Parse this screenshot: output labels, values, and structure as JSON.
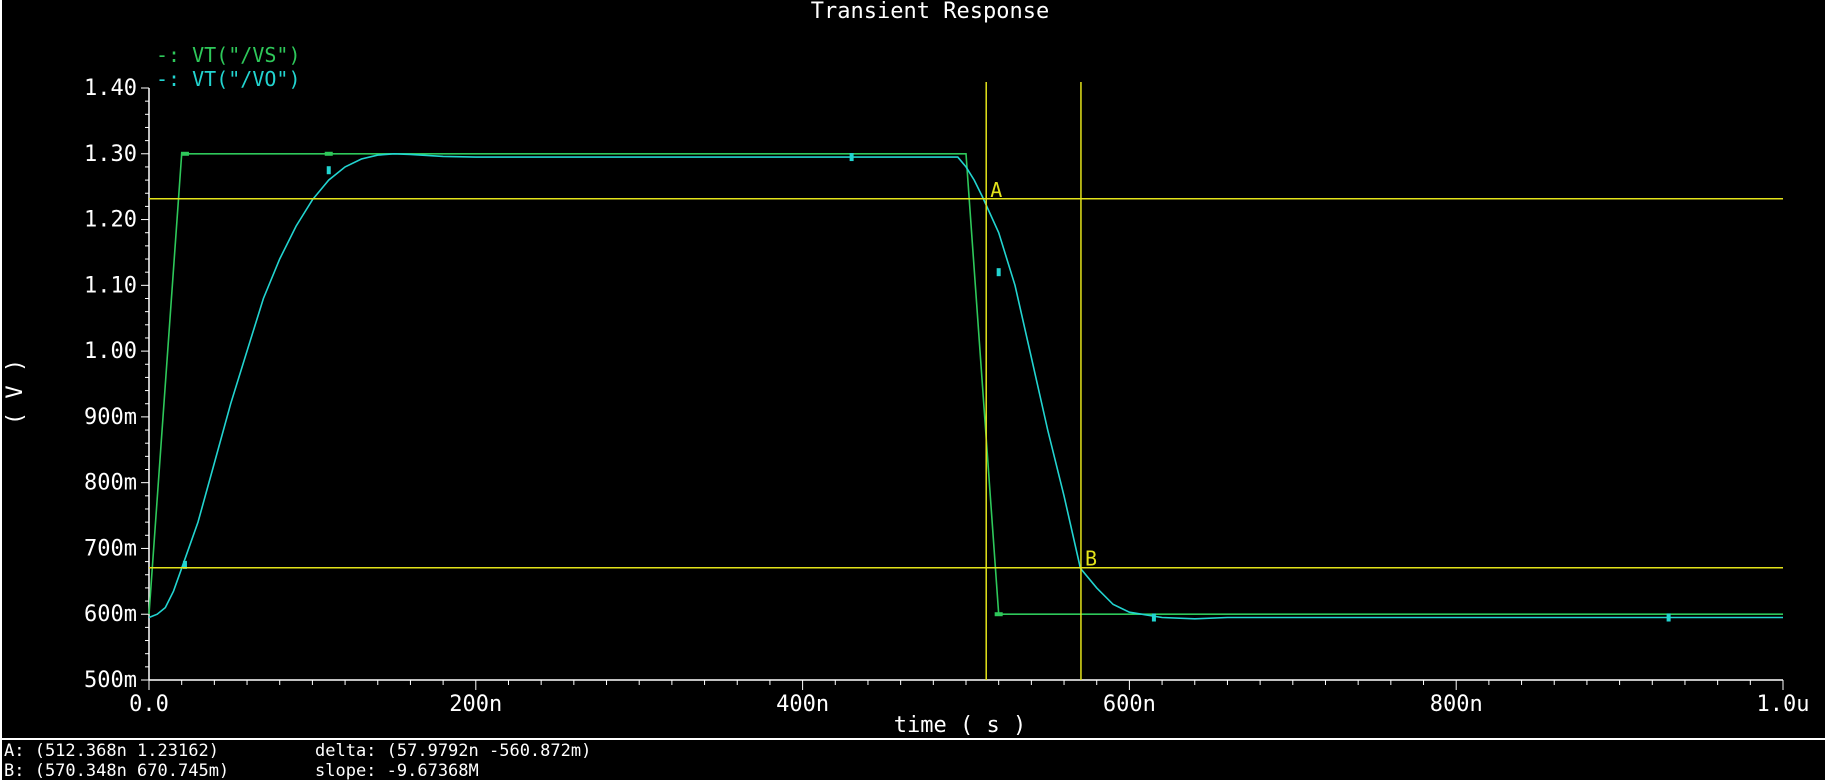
{
  "chart_data": {
    "type": "line",
    "title": "Transient Response",
    "xlabel": "time ( s )",
    "ylabel": "( V )",
    "xlim": [
      0,
      1.0
    ],
    "ylim": [
      0.5,
      1.4
    ],
    "x_ticks": [
      {
        "value": 0.0,
        "label": "0.0"
      },
      {
        "value": 0.2,
        "label": "200n"
      },
      {
        "value": 0.4,
        "label": "400n"
      },
      {
        "value": 0.6,
        "label": "600n"
      },
      {
        "value": 0.8,
        "label": "800n"
      },
      {
        "value": 1.0,
        "label": "1.0u"
      }
    ],
    "y_ticks": [
      {
        "value": 1.4,
        "label": "1.40"
      },
      {
        "value": 1.3,
        "label": "1.30"
      },
      {
        "value": 1.2,
        "label": "1.20"
      },
      {
        "value": 1.1,
        "label": "1.10"
      },
      {
        "value": 1.0,
        "label": "1.00"
      },
      {
        "value": 0.9,
        "label": "900m"
      },
      {
        "value": 0.8,
        "label": "800m"
      },
      {
        "value": 0.7,
        "label": "700m"
      },
      {
        "value": 0.6,
        "label": "600m"
      },
      {
        "value": 0.5,
        "label": "500m"
      }
    ],
    "legend_position": "top-left",
    "series": [
      {
        "name": "VT(\"/VS\")",
        "legend_label": "-: VT(\"/VS\")",
        "color": "#2ec85a",
        "points": [
          [
            0,
            0.6
          ],
          [
            0.02,
            1.3
          ],
          [
            0.5,
            1.3
          ],
          [
            0.52,
            0.6
          ],
          [
            1.0,
            0.6
          ]
        ],
        "markers": [
          [
            0.022,
            1.3
          ],
          [
            0.11,
            1.3
          ],
          [
            0.52,
            0.6
          ]
        ]
      },
      {
        "name": "VT(\"/VO\")",
        "legend_label": "-: VT(\"/VO\")",
        "color": "#22d4d0",
        "points": [
          [
            0,
            0.595
          ],
          [
            0.005,
            0.6
          ],
          [
            0.01,
            0.61
          ],
          [
            0.015,
            0.635
          ],
          [
            0.02,
            0.67
          ],
          [
            0.03,
            0.74
          ],
          [
            0.04,
            0.83
          ],
          [
            0.05,
            0.92
          ],
          [
            0.06,
            1.0
          ],
          [
            0.07,
            1.08
          ],
          [
            0.08,
            1.14
          ],
          [
            0.09,
            1.19
          ],
          [
            0.1,
            1.23
          ],
          [
            0.11,
            1.26
          ],
          [
            0.12,
            1.28
          ],
          [
            0.13,
            1.292
          ],
          [
            0.14,
            1.298
          ],
          [
            0.15,
            1.3
          ],
          [
            0.16,
            1.299
          ],
          [
            0.18,
            1.296
          ],
          [
            0.2,
            1.295
          ],
          [
            0.3,
            1.295
          ],
          [
            0.4,
            1.295
          ],
          [
            0.495,
            1.295
          ],
          [
            0.5,
            1.28
          ],
          [
            0.505,
            1.26
          ],
          [
            0.51,
            1.235
          ],
          [
            0.52,
            1.18
          ],
          [
            0.53,
            1.1
          ],
          [
            0.54,
            0.99
          ],
          [
            0.55,
            0.88
          ],
          [
            0.56,
            0.78
          ],
          [
            0.57,
            0.67
          ],
          [
            0.58,
            0.64
          ],
          [
            0.59,
            0.615
          ],
          [
            0.6,
            0.603
          ],
          [
            0.62,
            0.595
          ],
          [
            0.64,
            0.593
          ],
          [
            0.66,
            0.595
          ],
          [
            0.7,
            0.595
          ],
          [
            0.8,
            0.595
          ],
          [
            0.9,
            0.595
          ],
          [
            1.0,
            0.595
          ]
        ],
        "markers": [
          [
            0.022,
            0.675
          ],
          [
            0.11,
            1.275
          ],
          [
            0.43,
            1.295
          ],
          [
            0.52,
            1.12
          ],
          [
            0.615,
            0.595
          ],
          [
            0.93,
            0.595
          ]
        ]
      }
    ],
    "cursors": {
      "color": "#e3e31a",
      "vertical": [
        0.512368,
        0.570348
      ],
      "horizontal": [
        1.23162,
        0.670745
      ],
      "markers": [
        {
          "label": "A",
          "x": 0.512368,
          "y": 1.23162
        },
        {
          "label": "B",
          "x": 0.570348,
          "y": 0.670745
        }
      ]
    }
  },
  "status": {
    "a_readout": "A: (512.368n 1.23162)",
    "b_readout": "B: (570.348n 670.745m)",
    "delta": "delta: (57.9792n -560.872m)",
    "slope": "slope: -9.67368M"
  }
}
